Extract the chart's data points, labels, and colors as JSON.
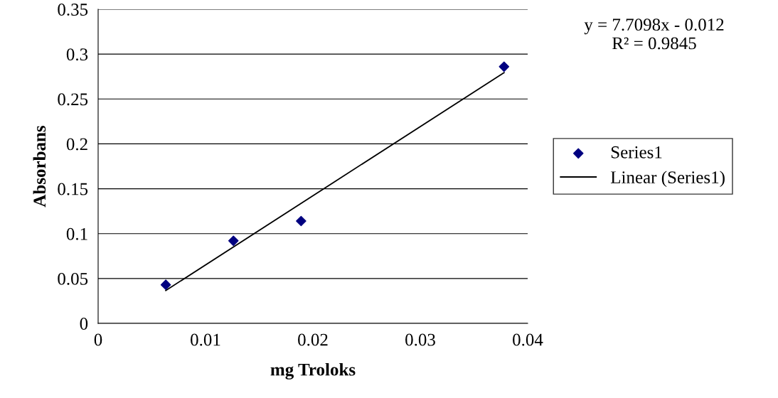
{
  "chart_data": {
    "type": "scatter",
    "xlabel": "mg Troloks",
    "ylabel": "Absorbans",
    "series": [
      {
        "name": "Series1",
        "color": "#000080",
        "marker": "diamond",
        "x": [
          0.0063,
          0.0126,
          0.0189,
          0.0378
        ],
        "values": [
          0.043,
          0.092,
          0.114,
          0.286
        ]
      },
      {
        "name": "Linear (Series1)",
        "type": "line",
        "color": "#000000",
        "marker": "none",
        "line_style": "solid",
        "x": [
          0.0063,
          0.0378
        ],
        "values": [
          0.0366,
          0.2794
        ]
      }
    ],
    "annotations": [
      "y = 7.7098x - 0.012\nR² = 0.9845"
    ],
    "xlim": [
      0,
      0.04
    ],
    "xticks": [
      0,
      0.01,
      0.02,
      0.03,
      0.04
    ],
    "ylim": [
      0,
      0.35
    ],
    "yticks": [
      0,
      0.05,
      0.1,
      0.15,
      0.2,
      0.25,
      0.3,
      0.35
    ],
    "grid": "y",
    "legend": "right"
  }
}
